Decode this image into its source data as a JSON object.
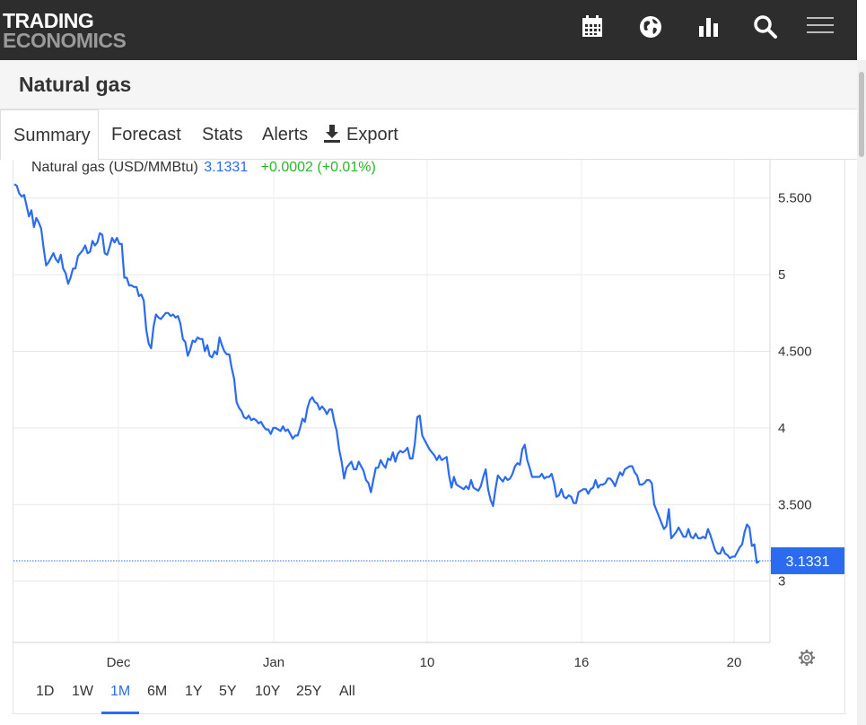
{
  "brand": {
    "line1": "TRADING",
    "line2": "ECONOMICS"
  },
  "toolbar_icons": [
    "calendar-icon",
    "globe-icon",
    "bar-chart-icon",
    "search-icon",
    "hamburger-menu-icon"
  ],
  "page": {
    "title": "Natural gas"
  },
  "tabs": [
    {
      "label": "Summary",
      "active": true
    },
    {
      "label": "Forecast"
    },
    {
      "label": "Stats"
    },
    {
      "label": "Alerts"
    },
    {
      "label": "Export",
      "icon": "download-icon"
    }
  ],
  "legend": {
    "name": "Natural gas (USD/MMBtu)",
    "value": "3.1331",
    "change": "+0.0002 (+0.01%)"
  },
  "price_tag": "3.1331",
  "ranges": [
    {
      "label": "1D"
    },
    {
      "label": "1W"
    },
    {
      "label": "1M",
      "active": true
    },
    {
      "label": "6M"
    },
    {
      "label": "1Y"
    },
    {
      "label": "5Y"
    },
    {
      "label": "10Y"
    },
    {
      "label": "25Y"
    },
    {
      "label": "All"
    }
  ],
  "colors": {
    "line": "#2b6bf0",
    "positive": "#2ab52a",
    "topbar": "#2d2d2d"
  },
  "chart_data": {
    "type": "line",
    "title": "",
    "y_ticks": [
      "5.500",
      "5",
      "4.500",
      "4",
      "3.500",
      "3"
    ],
    "x_ticks": [
      "Dec",
      "Jan",
      "10",
      "16",
      "20"
    ],
    "ylim": [
      2.6,
      5.75
    ],
    "grid": true,
    "last_value": 3.1331,
    "series": [
      {
        "name": "Natural gas (USD/MMBtu)",
        "values": [
          5.59,
          5.58,
          5.53,
          5.51,
          5.52,
          5.45,
          5.38,
          5.42,
          5.31,
          5.37,
          5.34,
          5.3,
          5.17,
          5.06,
          5.08,
          5.11,
          5.14,
          5.1,
          5.08,
          5.13,
          5.04,
          5.01,
          4.94,
          4.98,
          5.04,
          5.04,
          5.12,
          5.14,
          5.16,
          5.19,
          5.14,
          5.15,
          5.22,
          5.19,
          5.21,
          5.27,
          5.26,
          5.14,
          5.13,
          5.18,
          5.24,
          5.21,
          5.24,
          5.2,
          5.2,
          4.98,
          4.98,
          4.93,
          4.93,
          4.92,
          4.92,
          4.86,
          4.87,
          4.83,
          4.64,
          4.55,
          4.52,
          4.66,
          4.74,
          4.72,
          4.71,
          4.73,
          4.75,
          4.75,
          4.73,
          4.74,
          4.72,
          4.73,
          4.68,
          4.58,
          4.56,
          4.47,
          4.51,
          4.57,
          4.56,
          4.59,
          4.58,
          4.58,
          4.5,
          4.54,
          4.47,
          4.46,
          4.5,
          4.48,
          4.59,
          4.54,
          4.5,
          4.48,
          4.48,
          4.39,
          4.32,
          4.17,
          4.13,
          4.11,
          4.07,
          4.06,
          4.08,
          4.05,
          4.06,
          4.05,
          4.03,
          4.04,
          4.01,
          3.99,
          3.99,
          3.96,
          4.0,
          4.0,
          3.99,
          3.98,
          4.01,
          3.98,
          3.99,
          3.96,
          3.93,
          3.95,
          3.95,
          4.0,
          4.06,
          4.04,
          4.13,
          4.18,
          4.2,
          4.17,
          4.16,
          4.12,
          4.14,
          4.12,
          4.09,
          4.12,
          4.12,
          4.04,
          3.98,
          3.86,
          3.78,
          3.67,
          3.74,
          3.76,
          3.78,
          3.73,
          3.73,
          3.78,
          3.75,
          3.72,
          3.66,
          3.64,
          3.58,
          3.66,
          3.74,
          3.74,
          3.79,
          3.76,
          3.74,
          3.8,
          3.79,
          3.84,
          3.78,
          3.83,
          3.85,
          3.84,
          3.85,
          3.87,
          3.8,
          3.8,
          3.9,
          4.07,
          4.08,
          3.95,
          3.92,
          3.89,
          3.86,
          3.84,
          3.82,
          3.79,
          3.82,
          3.79,
          3.8,
          3.81,
          3.69,
          3.61,
          3.68,
          3.63,
          3.62,
          3.61,
          3.6,
          3.62,
          3.6,
          3.66,
          3.61,
          3.6,
          3.59,
          3.62,
          3.68,
          3.73,
          3.6,
          3.53,
          3.49,
          3.6,
          3.69,
          3.67,
          3.65,
          3.68,
          3.66,
          3.67,
          3.7,
          3.75,
          3.77,
          3.76,
          3.86,
          3.89,
          3.79,
          3.74,
          3.68,
          3.68,
          3.68,
          3.68,
          3.7,
          3.67,
          3.68,
          3.68,
          3.7,
          3.64,
          3.55,
          3.56,
          3.6,
          3.55,
          3.54,
          3.56,
          3.55,
          3.51,
          3.51,
          3.58,
          3.59,
          3.6,
          3.6,
          3.57,
          3.6,
          3.61,
          3.66,
          3.61,
          3.63,
          3.63,
          3.64,
          3.67,
          3.67,
          3.65,
          3.62,
          3.67,
          3.71,
          3.69,
          3.73,
          3.74,
          3.75,
          3.75,
          3.71,
          3.69,
          3.63,
          3.63,
          3.64,
          3.66,
          3.66,
          3.64,
          3.5,
          3.46,
          3.42,
          3.38,
          3.34,
          3.36,
          3.47,
          3.28,
          3.3,
          3.32,
          3.35,
          3.32,
          3.29,
          3.29,
          3.34,
          3.29,
          3.28,
          3.31,
          3.28,
          3.28,
          3.29,
          3.28,
          3.34,
          3.3,
          3.25,
          3.2,
          3.18,
          3.18,
          3.22,
          3.18,
          3.17,
          3.15,
          3.16,
          3.16,
          3.19,
          3.22,
          3.24,
          3.32,
          3.37,
          3.35,
          3.23,
          3.24,
          3.12,
          3.13
        ]
      }
    ]
  }
}
